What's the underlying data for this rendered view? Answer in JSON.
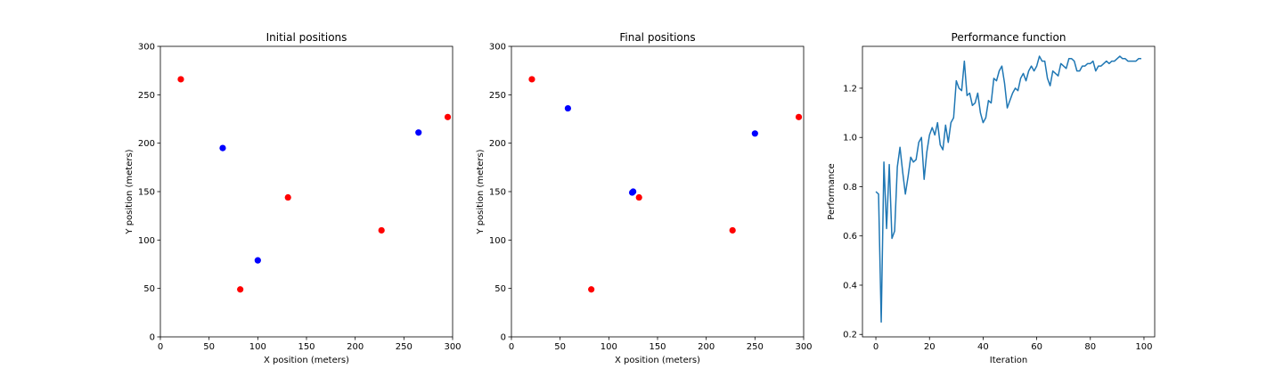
{
  "chart_data": [
    {
      "type": "scatter",
      "title": "Initial positions",
      "xlabel": "X position (meters)",
      "ylabel": "Y position (meters)",
      "xlim": [
        0,
        300
      ],
      "ylim": [
        0,
        300
      ],
      "xticks": [
        0,
        50,
        100,
        150,
        200,
        250,
        300
      ],
      "yticks": [
        0,
        50,
        100,
        150,
        200,
        250,
        300
      ],
      "grid": false,
      "series": [
        {
          "color": "#ff0000",
          "x": [
            21,
            82,
            131,
            227,
            295
          ],
          "y": [
            266,
            49,
            144,
            110,
            227
          ]
        },
        {
          "color": "#0000ff",
          "x": [
            64,
            100,
            265
          ],
          "y": [
            195,
            79,
            211
          ]
        }
      ]
    },
    {
      "type": "scatter",
      "title": "Final positions",
      "xlabel": "X position (meters)",
      "ylabel": "Y position (meters)",
      "xlim": [
        0,
        300
      ],
      "ylim": [
        0,
        300
      ],
      "xticks": [
        0,
        50,
        100,
        150,
        200,
        250,
        300
      ],
      "yticks": [
        0,
        50,
        100,
        150,
        200,
        250,
        300
      ],
      "grid": false,
      "series": [
        {
          "color": "#ff0000",
          "x": [
            21,
            82,
            131,
            227,
            295
          ],
          "y": [
            266,
            49,
            144,
            110,
            227
          ]
        },
        {
          "color": "#0000ff",
          "x": [
            58,
            124,
            125,
            250
          ],
          "y": [
            236,
            149,
            150,
            210
          ]
        }
      ]
    },
    {
      "type": "line",
      "title": "Performance function",
      "xlabel": "Iteration",
      "ylabel": "Performance",
      "xlim": [
        -5,
        104
      ],
      "ylim": [
        0.19,
        1.37
      ],
      "xticks": [
        0,
        20,
        40,
        60,
        80,
        100
      ],
      "yticks": [
        0.2,
        0.4,
        0.6,
        0.8,
        1.0,
        1.2
      ],
      "ytick_labels": [
        "0.2",
        "0.4",
        "0.6",
        "0.8",
        "1.0",
        "1.2"
      ],
      "grid": false,
      "series": [
        {
          "color": "#1f77b4",
          "x": [
            0,
            1,
            2,
            3,
            4,
            5,
            6,
            7,
            8,
            9,
            10,
            11,
            12,
            13,
            14,
            15,
            16,
            17,
            18,
            19,
            20,
            21,
            22,
            23,
            24,
            25,
            26,
            27,
            28,
            29,
            30,
            31,
            32,
            33,
            34,
            35,
            36,
            37,
            38,
            39,
            40,
            41,
            42,
            43,
            44,
            45,
            46,
            47,
            48,
            49,
            50,
            51,
            52,
            53,
            54,
            55,
            56,
            57,
            58,
            59,
            60,
            61,
            62,
            63,
            64,
            65,
            66,
            67,
            68,
            69,
            70,
            71,
            72,
            73,
            74,
            75,
            76,
            77,
            78,
            79,
            80,
            81,
            82,
            83,
            84,
            85,
            86,
            87,
            88,
            89,
            90,
            91,
            92,
            93,
            94,
            95,
            96,
            97,
            98,
            99
          ],
          "y": [
            0.78,
            0.77,
            0.25,
            0.9,
            0.63,
            0.89,
            0.59,
            0.62,
            0.88,
            0.96,
            0.86,
            0.77,
            0.84,
            0.92,
            0.9,
            0.91,
            0.98,
            1.0,
            0.83,
            0.94,
            1.01,
            1.04,
            1.01,
            1.06,
            0.97,
            0.95,
            1.05,
            0.98,
            1.06,
            1.08,
            1.23,
            1.2,
            1.19,
            1.31,
            1.17,
            1.18,
            1.13,
            1.14,
            1.18,
            1.1,
            1.06,
            1.08,
            1.15,
            1.14,
            1.24,
            1.23,
            1.27,
            1.29,
            1.22,
            1.12,
            1.15,
            1.18,
            1.2,
            1.19,
            1.24,
            1.26,
            1.23,
            1.27,
            1.29,
            1.27,
            1.29,
            1.33,
            1.31,
            1.31,
            1.24,
            1.21,
            1.27,
            1.26,
            1.25,
            1.3,
            1.29,
            1.28,
            1.32,
            1.32,
            1.31,
            1.27,
            1.27,
            1.29,
            1.29,
            1.3,
            1.3,
            1.31,
            1.27,
            1.29,
            1.29,
            1.3,
            1.31,
            1.3,
            1.31,
            1.31,
            1.32,
            1.33,
            1.32,
            1.32,
            1.31,
            1.31,
            1.31,
            1.31,
            1.32,
            1.32
          ]
        }
      ]
    }
  ]
}
